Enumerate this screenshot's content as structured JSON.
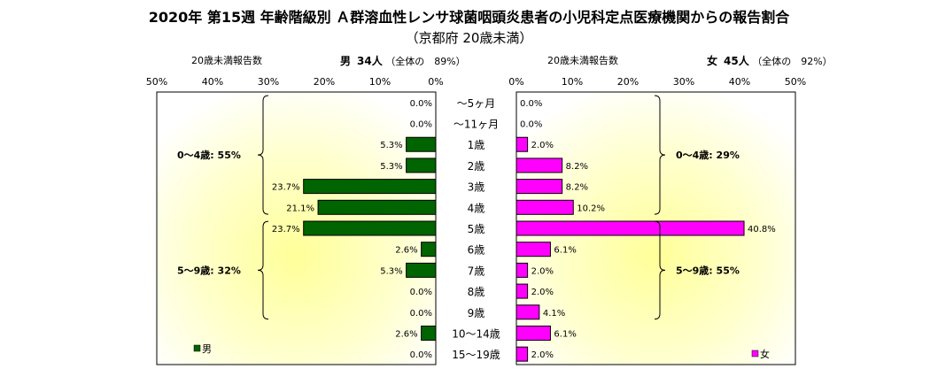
{
  "header": {
    "title": "2020年 第15週 年齢階級別 Ａ群溶血性レンサ球菌咽頭炎患者の小児科定点医療機関からの報告割合",
    "subtitle": "（京都府 20歳未満）"
  },
  "male_panel": {
    "count_label": "20歳未満報告数",
    "sex": "男",
    "count": "34人",
    "share_text": "（全体の　89%）"
  },
  "female_panel": {
    "count_label": "20歳未満報告数",
    "sex": "女",
    "count": "45人",
    "share_text": "（全体の　92%）"
  },
  "chart_data": {
    "type": "bar",
    "orientation": "horizontal-butterfly",
    "categories": [
      "～5ヶ月",
      "～11ヶ月",
      "1歳",
      "2歳",
      "3歳",
      "4歳",
      "5歳",
      "6歳",
      "7歳",
      "8歳",
      "9歳",
      "10～14歳",
      "15～19歳"
    ],
    "series": [
      {
        "name": "男",
        "values": [
          0.0,
          0.0,
          5.3,
          5.3,
          23.7,
          21.1,
          23.7,
          2.6,
          5.3,
          0.0,
          0.0,
          2.6,
          0.0
        ],
        "color": "#006400"
      },
      {
        "name": "女",
        "values": [
          0.0,
          0.0,
          2.0,
          8.2,
          8.2,
          10.2,
          40.8,
          6.1,
          2.0,
          2.0,
          4.1,
          6.1,
          2.0
        ],
        "color": "#FF00FF"
      }
    ],
    "xlim": [
      0,
      50
    ],
    "x_ticks": [
      "50%",
      "40%",
      "30%",
      "20%",
      "10%",
      "0%",
      "0%",
      "10%",
      "20%",
      "30%",
      "40%",
      "50%"
    ],
    "tick_values": [
      0,
      10,
      20,
      30,
      40,
      50
    ],
    "value_suffix": "%",
    "legend": [
      "男",
      "女"
    ],
    "legend_placement": "bottom-left / bottom-right",
    "annotations": {
      "male_0_4": "0～4歳: 55%",
      "male_5_9": "5～9歳: 32%",
      "female_0_4": "0～4歳: 29%",
      "female_5_9": "5～9歳: 55%"
    }
  }
}
